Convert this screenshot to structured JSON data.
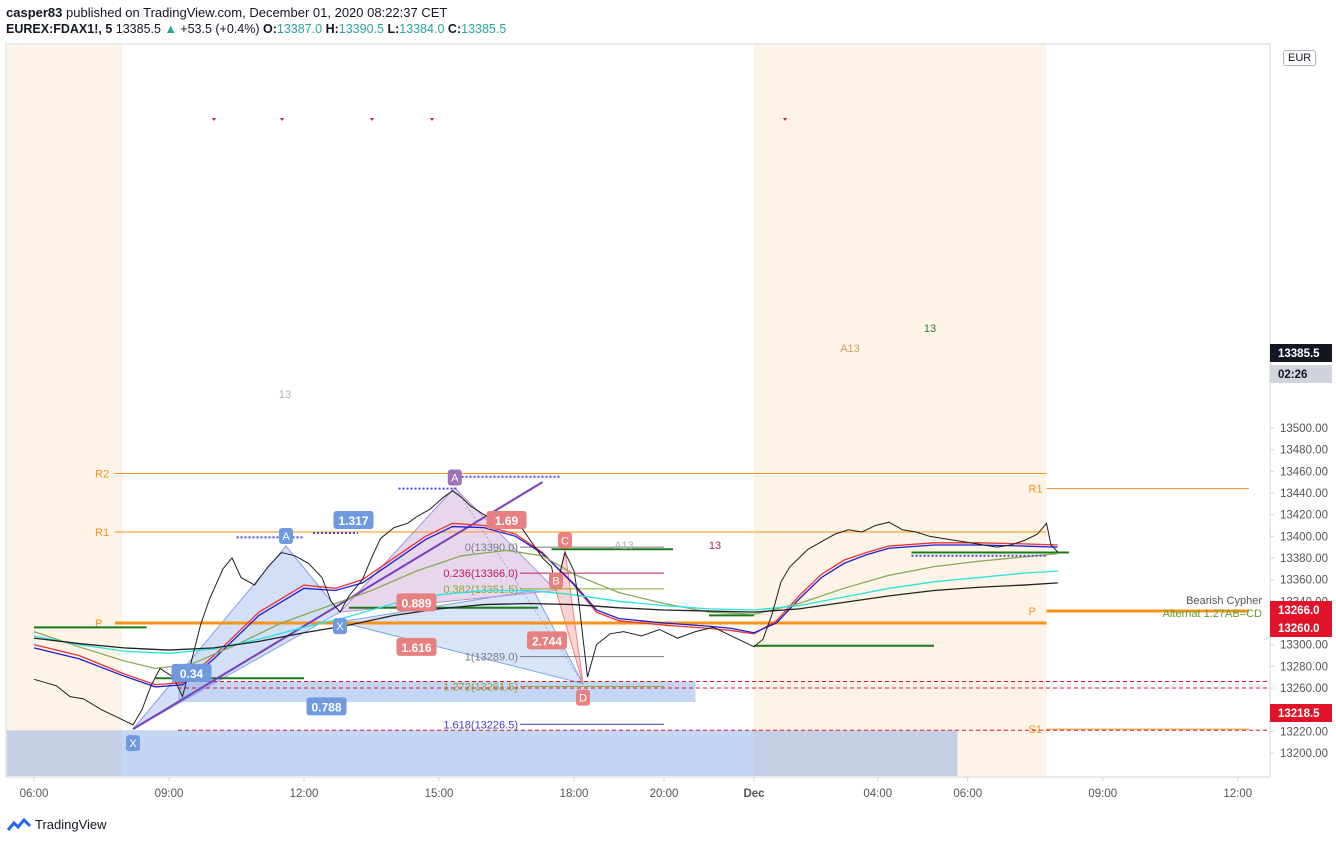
{
  "header": {
    "publisher": "casper83",
    "published_text": "published on TradingView.com, December 01, 2020 08:22:37 CET",
    "symbol": "EUREX:FDAX1!, 5",
    "price": "13385.5",
    "change": "+53.5 (+0.4%)",
    "o_label": "O:",
    "o": "13387.0",
    "h_label": "H:",
    "h": "13390.5",
    "l_label": "L:",
    "l": "13384.0",
    "c_label": "C:",
    "c": "13385.5"
  },
  "currency": "EUR",
  "footer": {
    "logo_text": "TradingView"
  },
  "colors": {
    "up": "#26a69a",
    "orange": "#f7931a",
    "pivot_line": "#f7931a",
    "session_shade": "#fdf3e6",
    "harmonic_blue": "#7ea4e6",
    "harmonic_red": "#f08080",
    "ema_red": "#e8333a",
    "ema_blue": "#1e1ed2",
    "ema_green": "#8aaa57",
    "ema_cyan": "#29e2e2",
    "ema_black": "#222222",
    "green_level": "#1a7a1a"
  },
  "chart_data": {
    "type": "line",
    "title": "",
    "y_axis": {
      "ylim": [
        13185,
        13525
      ],
      "ticks": [
        13200,
        13220,
        13240,
        13260,
        13280,
        13300,
        13320,
        13340,
        13360,
        13380,
        13400,
        13420,
        13440,
        13460,
        13480,
        13500
      ]
    },
    "x_axis": {
      "ticks": [
        {
          "label": "06:00",
          "t": 5.5
        },
        {
          "label": "09:00",
          "t": 8.5
        },
        {
          "label": "12:00",
          "t": 11.5
        },
        {
          "label": "15:00",
          "t": 14.5
        },
        {
          "label": "18:00",
          "t": 17.5
        },
        {
          "label": "20:00",
          "t": 19.5
        },
        {
          "label": "Dec",
          "t": 21.5
        },
        {
          "label": "04:00",
          "t": 24.25
        },
        {
          "label": "06:00",
          "t": 26.25
        },
        {
          "label": "09:00",
          "t": 29.25
        },
        {
          "label": "12:00",
          "t": 32.25
        }
      ]
    },
    "price_series": [
      [
        5.5,
        13268
      ],
      [
        6.0,
        13262
      ],
      [
        6.3,
        13252
      ],
      [
        6.6,
        13250
      ],
      [
        7.0,
        13240
      ],
      [
        7.4,
        13232
      ],
      [
        7.7,
        13226
      ],
      [
        7.9,
        13240
      ],
      [
        8.1,
        13262
      ],
      [
        8.3,
        13278
      ],
      [
        8.6,
        13270
      ],
      [
        8.8,
        13252
      ],
      [
        9.0,
        13285
      ],
      [
        9.2,
        13318
      ],
      [
        9.4,
        13342
      ],
      [
        9.7,
        13370
      ],
      [
        9.9,
        13380
      ],
      [
        10.1,
        13362
      ],
      [
        10.4,
        13355
      ],
      [
        10.7,
        13372
      ],
      [
        11.0,
        13385
      ],
      [
        11.3,
        13382
      ],
      [
        11.6,
        13375
      ],
      [
        11.9,
        13362
      ],
      [
        12.1,
        13340
      ],
      [
        12.3,
        13330
      ],
      [
        12.5,
        13345
      ],
      [
        12.8,
        13360
      ],
      [
        13.0,
        13380
      ],
      [
        13.2,
        13398
      ],
      [
        13.5,
        13408
      ],
      [
        13.8,
        13412
      ],
      [
        14.0,
        13418
      ],
      [
        14.3,
        13425
      ],
      [
        14.6,
        13436
      ],
      [
        14.8,
        13442
      ],
      [
        15.0,
        13436
      ],
      [
        15.2,
        13428
      ],
      [
        15.5,
        13420
      ],
      [
        15.8,
        13415
      ],
      [
        16.0,
        13412
      ],
      [
        16.3,
        13410
      ],
      [
        16.5,
        13398
      ],
      [
        16.8,
        13380
      ],
      [
        17.0,
        13372
      ],
      [
        17.1,
        13352
      ],
      [
        17.3,
        13385
      ],
      [
        17.5,
        13368
      ],
      [
        17.6,
        13342
      ],
      [
        17.8,
        13270
      ],
      [
        18.0,
        13300
      ],
      [
        18.3,
        13310
      ],
      [
        18.6,
        13312
      ],
      [
        19.0,
        13308
      ],
      [
        19.4,
        13314
      ],
      [
        19.8,
        13306
      ],
      [
        20.2,
        13312
      ],
      [
        20.6,
        13316
      ],
      [
        20.9,
        13310
      ],
      [
        21.1,
        13306
      ],
      [
        21.3,
        13302
      ],
      [
        21.5,
        13298
      ],
      [
        21.7,
        13305
      ],
      [
        21.9,
        13328
      ],
      [
        22.1,
        13358
      ],
      [
        22.3,
        13372
      ],
      [
        22.5,
        13380
      ],
      [
        22.7,
        13388
      ],
      [
        23.0,
        13395
      ],
      [
        23.3,
        13402
      ],
      [
        23.6,
        13406
      ],
      [
        23.9,
        13404
      ],
      [
        24.2,
        13410
      ],
      [
        24.5,
        13413
      ],
      [
        24.8,
        13406
      ],
      [
        25.1,
        13404
      ],
      [
        25.4,
        13400
      ],
      [
        25.7,
        13398
      ],
      [
        26.0,
        13396
      ],
      [
        26.3,
        13394
      ],
      [
        26.6,
        13392
      ],
      [
        26.9,
        13390
      ],
      [
        27.2,
        13392
      ],
      [
        27.5,
        13396
      ],
      [
        27.8,
        13402
      ],
      [
        28.0,
        13412
      ],
      [
        28.1,
        13392
      ],
      [
        28.25,
        13385.5
      ]
    ],
    "moving_averages": [
      {
        "color": "#e8333a",
        "points": [
          [
            5.5,
            13300
          ],
          [
            6.5,
            13290
          ],
          [
            7.5,
            13273
          ],
          [
            8.2,
            13263
          ],
          [
            8.8,
            13265
          ],
          [
            9.5,
            13290
          ],
          [
            10.5,
            13330
          ],
          [
            11.5,
            13355
          ],
          [
            12.2,
            13352
          ],
          [
            12.8,
            13360
          ],
          [
            13.5,
            13380
          ],
          [
            14.2,
            13400
          ],
          [
            14.8,
            13412
          ],
          [
            15.5,
            13410
          ],
          [
            16.2,
            13402
          ],
          [
            16.8,
            13385
          ],
          [
            17.5,
            13355
          ],
          [
            18.0,
            13330
          ],
          [
            18.5,
            13322
          ],
          [
            19.5,
            13318
          ],
          [
            20.5,
            13315
          ],
          [
            21.0,
            13313
          ],
          [
            21.5,
            13310
          ],
          [
            22.0,
            13322
          ],
          [
            22.5,
            13345
          ],
          [
            23.0,
            13365
          ],
          [
            23.5,
            13378
          ],
          [
            24.0,
            13385
          ],
          [
            24.5,
            13391
          ],
          [
            25.5,
            13394
          ],
          [
            26.5,
            13394
          ],
          [
            27.5,
            13393
          ],
          [
            28.25,
            13392
          ]
        ]
      },
      {
        "color": "#1e1ed2",
        "points": [
          [
            5.5,
            13297
          ],
          [
            6.5,
            13287
          ],
          [
            7.5,
            13271
          ],
          [
            8.2,
            13261
          ],
          [
            8.8,
            13263
          ],
          [
            9.5,
            13287
          ],
          [
            10.5,
            13327
          ],
          [
            11.5,
            13352
          ],
          [
            12.2,
            13350
          ],
          [
            12.8,
            13357
          ],
          [
            13.5,
            13377
          ],
          [
            14.2,
            13397
          ],
          [
            14.8,
            13409
          ],
          [
            15.5,
            13408
          ],
          [
            16.2,
            13400
          ],
          [
            16.8,
            13384
          ],
          [
            17.5,
            13356
          ],
          [
            18.0,
            13332
          ],
          [
            18.5,
            13324
          ],
          [
            19.5,
            13320
          ],
          [
            20.5,
            13317
          ],
          [
            21.0,
            13315
          ],
          [
            21.5,
            13311
          ],
          [
            22.0,
            13320
          ],
          [
            22.5,
            13342
          ],
          [
            23.0,
            13362
          ],
          [
            23.5,
            13375
          ],
          [
            24.0,
            13383
          ],
          [
            24.5,
            13389
          ],
          [
            25.5,
            13392
          ],
          [
            26.5,
            13392
          ],
          [
            27.5,
            13391
          ],
          [
            28.25,
            13390
          ]
        ]
      },
      {
        "color": "#8aaa57",
        "points": [
          [
            5.5,
            13312
          ],
          [
            6.5,
            13298
          ],
          [
            7.5,
            13285
          ],
          [
            8.2,
            13278
          ],
          [
            9.0,
            13282
          ],
          [
            10.0,
            13300
          ],
          [
            11.0,
            13320
          ],
          [
            12.0,
            13335
          ],
          [
            13.0,
            13350
          ],
          [
            14.0,
            13368
          ],
          [
            15.0,
            13382
          ],
          [
            16.0,
            13387
          ],
          [
            16.8,
            13382
          ],
          [
            17.5,
            13365
          ],
          [
            18.5,
            13348
          ],
          [
            19.5,
            13338
          ],
          [
            20.5,
            13330
          ],
          [
            21.5,
            13328
          ],
          [
            22.5,
            13338
          ],
          [
            23.5,
            13352
          ],
          [
            24.5,
            13364
          ],
          [
            25.5,
            13372
          ],
          [
            26.5,
            13377
          ],
          [
            27.5,
            13381
          ],
          [
            28.25,
            13384
          ]
        ]
      },
      {
        "color": "#29e2e2",
        "points": [
          [
            5.5,
            13308
          ],
          [
            6.5,
            13300
          ],
          [
            7.5,
            13294
          ],
          [
            8.5,
            13292
          ],
          [
            9.5,
            13296
          ],
          [
            10.5,
            13305
          ],
          [
            11.5,
            13316
          ],
          [
            12.5,
            13326
          ],
          [
            13.5,
            13338
          ],
          [
            14.5,
            13346
          ],
          [
            15.5,
            13350
          ],
          [
            16.5,
            13350
          ],
          [
            17.5,
            13346
          ],
          [
            18.5,
            13340
          ],
          [
            19.5,
            13336
          ],
          [
            20.5,
            13333
          ],
          [
            21.5,
            13332
          ],
          [
            22.5,
            13336
          ],
          [
            23.5,
            13344
          ],
          [
            24.5,
            13352
          ],
          [
            25.5,
            13358
          ],
          [
            26.5,
            13362
          ],
          [
            27.5,
            13366
          ],
          [
            28.25,
            13368
          ]
        ]
      },
      {
        "color": "#222222",
        "points": [
          [
            5.5,
            13306
          ],
          [
            6.5,
            13301
          ],
          [
            7.5,
            13297
          ],
          [
            8.5,
            13295
          ],
          [
            9.5,
            13297
          ],
          [
            10.5,
            13303
          ],
          [
            11.5,
            13311
          ],
          [
            12.5,
            13318
          ],
          [
            13.5,
            13327
          ],
          [
            14.5,
            13333
          ],
          [
            15.5,
            13337
          ],
          [
            16.5,
            13338
          ],
          [
            17.5,
            13337
          ],
          [
            18.5,
            13334
          ],
          [
            19.5,
            13332
          ],
          [
            20.5,
            13331
          ],
          [
            21.5,
            13330
          ],
          [
            22.5,
            13333
          ],
          [
            23.5,
            13339
          ],
          [
            24.5,
            13345
          ],
          [
            25.5,
            13350
          ],
          [
            26.5,
            13353
          ],
          [
            27.5,
            13355
          ],
          [
            28.25,
            13357
          ]
        ]
      }
    ],
    "pivot_lines": [
      {
        "label": "R2",
        "y": 13458,
        "t0": 7.3,
        "t1": 28.0,
        "side": "left"
      },
      {
        "label": "R1",
        "y": 13404,
        "t0": 7.3,
        "t1": 28.0,
        "side": "left"
      },
      {
        "label": "P",
        "y": 13320,
        "t0": 7.3,
        "t1": 28.0,
        "side": "left"
      },
      {
        "label": "R1",
        "y": 13444,
        "t0": 28.0,
        "t1": 32.5,
        "side": "right"
      },
      {
        "label": "P",
        "y": 13331,
        "t0": 28.0,
        "t1": 32.5,
        "side": "right"
      },
      {
        "label": "S1",
        "y": 13222,
        "t0": 28.0,
        "t1": 32.5,
        "side": "right"
      }
    ],
    "fib_levels": [
      {
        "label": "0(13390.0)",
        "y": 13390,
        "color": "#787b86"
      },
      {
        "label": "0.236(13366.0)",
        "y": 13366,
        "color": "#c2185b"
      },
      {
        "label": "0.382(13351.5)",
        "y": 13351.5,
        "color": "#8aaa2a"
      },
      {
        "label": "1(13289.0)",
        "y": 13289,
        "color": "#787b86"
      },
      {
        "label": "1.272(13261.5)",
        "y": 13261.5,
        "color": "#8aaa2a"
      },
      {
        "label": "1.618(13226.5)",
        "y": 13226.5,
        "color": "#3f3fc0"
      }
    ],
    "harmonic_points": [
      {
        "label": "X",
        "t": 7.7,
        "y": 13222
      },
      {
        "label": "A",
        "t": 11.1,
        "y": 13391
      },
      {
        "label": "X",
        "t": 12.3,
        "y": 13330
      },
      {
        "label": "A",
        "t": 14.85,
        "y": 13445
      },
      {
        "label": "B",
        "t": 17.1,
        "y": 13350
      },
      {
        "label": "C",
        "t": 17.3,
        "y": 13387
      },
      {
        "label": "D",
        "t": 17.7,
        "y": 13264
      }
    ],
    "ratio_labels": [
      {
        "label": "1.317",
        "t": 12.6,
        "y": 13415
      },
      {
        "label": "0.34",
        "t": 9.0,
        "y": 13274
      },
      {
        "label": "0.788",
        "t": 12.0,
        "y": 13243
      },
      {
        "label": "0.889",
        "t": 14.0,
        "y": 13339
      },
      {
        "label": "1.616",
        "t": 14.0,
        "y": 13298
      },
      {
        "label": "2.744",
        "t": 16.9,
        "y": 13304
      },
      {
        "label": "1.69",
        "t": 16.0,
        "y": 13415
      }
    ],
    "price_labels": [
      {
        "value": "13385.5",
        "color": "#ffffff",
        "bg": "#131722"
      },
      {
        "value": "02:26",
        "color": "#131722",
        "bg": "#d1d4dc"
      },
      {
        "value": "13266.0",
        "color": "#ffffff",
        "bg": "#e0132b"
      },
      {
        "value": "13260.0",
        "color": "#ffffff",
        "bg": "#e0132b"
      },
      {
        "value": "13218.5",
        "color": "#ffffff",
        "bg": "#e0132b"
      }
    ],
    "annotations": [
      {
        "text": "Bearish Cypher",
        "color": "#555555"
      },
      {
        "text": "Alternat 1.27AB=CD",
        "color": "#6a9a2a"
      },
      {
        "text": "13",
        "color": "#c2185b"
      },
      {
        "text": "A13",
        "color": "#b0b0b0"
      },
      {
        "text": "13",
        "color": "#2e7d32"
      },
      {
        "text": "A13",
        "color": "#c8a060"
      },
      {
        "text": "13",
        "color": "#b0b0b0"
      }
    ]
  }
}
